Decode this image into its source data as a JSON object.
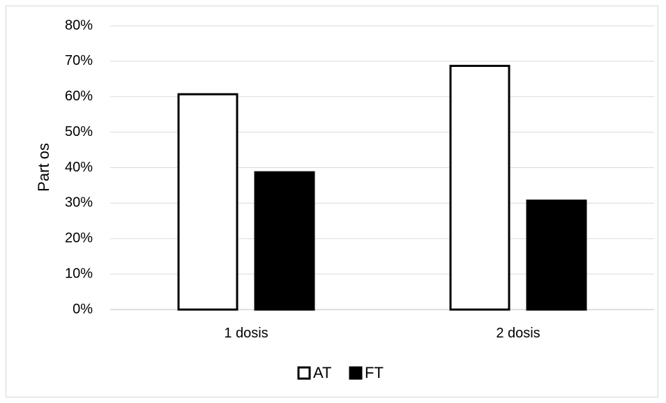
{
  "chart_data": {
    "type": "bar",
    "categories": [
      "1 dosis",
      "2 dosis"
    ],
    "series": [
      {
        "name": "AT",
        "values": [
          0.61,
          0.69
        ],
        "fill": "#ffffff",
        "stroke": "#000000"
      },
      {
        "name": "FT",
        "values": [
          0.39,
          0.31
        ],
        "fill": "#000000",
        "stroke": "#000000"
      }
    ],
    "title": "",
    "xlabel": "",
    "ylabel": "Part os",
    "ylim": [
      0,
      0.8
    ],
    "yticks": [
      "0%",
      "10%",
      "20%",
      "30%",
      "40%",
      "50%",
      "60%",
      "70%",
      "80%"
    ],
    "grid": true,
    "legend_position": "bottom",
    "colors": {
      "grid": "#d9d9d9",
      "axis": "#bfbfbf",
      "text": "#000000"
    }
  }
}
